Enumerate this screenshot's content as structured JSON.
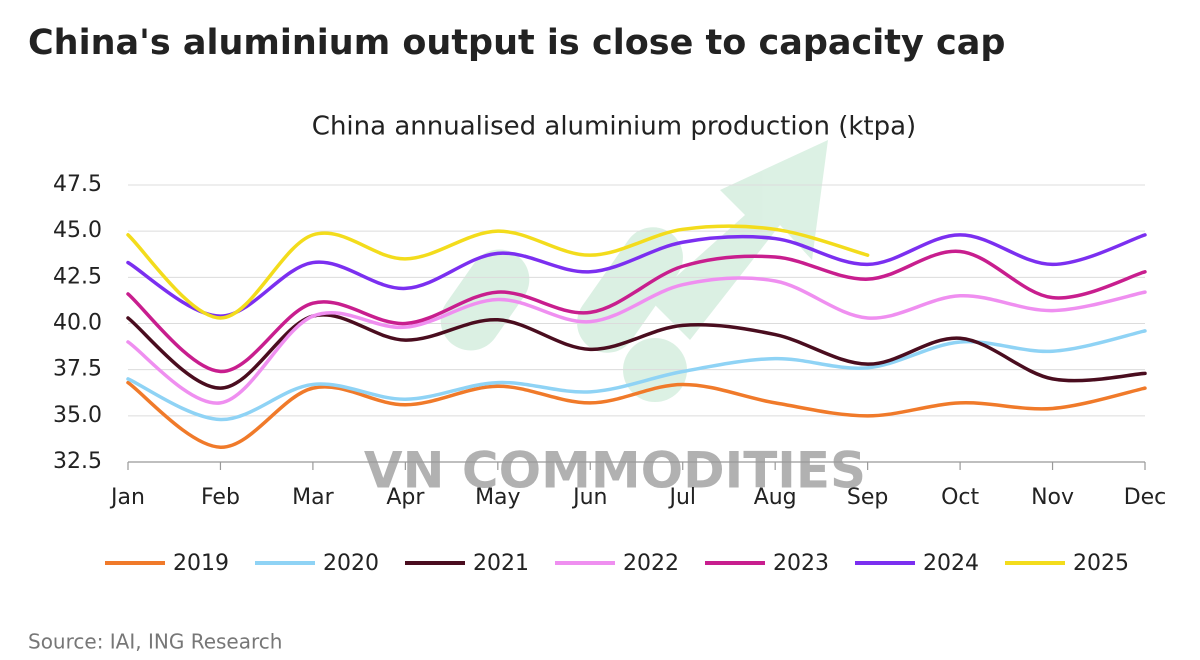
{
  "chart_data": {
    "type": "line",
    "title": "China's aluminium output is close to capacity cap",
    "subtitle": "China annualised aluminium production (ktpa)",
    "source": "Source: IAI, ING Research",
    "watermark": "VN COMMODITIES",
    "categories": [
      "Jan",
      "Feb",
      "Mar",
      "Apr",
      "May",
      "Jun",
      "Jul",
      "Aug",
      "Sep",
      "Oct",
      "Nov",
      "Dec"
    ],
    "series": [
      {
        "name": "2019",
        "color": "#f07a2a",
        "values": [
          36.8,
          33.3,
          36.5,
          35.6,
          36.6,
          35.7,
          36.7,
          35.7,
          35.0,
          35.7,
          35.4,
          36.5
        ]
      },
      {
        "name": "2020",
        "color": "#8fd3f5",
        "values": [
          37.0,
          34.8,
          36.7,
          35.9,
          36.8,
          36.3,
          37.4,
          38.1,
          37.6,
          39.0,
          38.5,
          39.6
        ]
      },
      {
        "name": "2021",
        "color": "#4a0d1f",
        "values": [
          40.3,
          36.5,
          40.4,
          39.1,
          40.2,
          38.6,
          39.9,
          39.4,
          37.8,
          39.2,
          37.0,
          37.3
        ]
      },
      {
        "name": "2022",
        "color": "#ef8ff0",
        "values": [
          39.0,
          35.7,
          40.4,
          39.8,
          41.3,
          40.1,
          42.1,
          42.3,
          40.3,
          41.5,
          40.7,
          41.7
        ]
      },
      {
        "name": "2023",
        "color": "#c81e8e",
        "values": [
          41.6,
          37.4,
          41.1,
          40.0,
          41.7,
          40.6,
          43.1,
          43.6,
          42.4,
          43.9,
          41.4,
          42.8
        ]
      },
      {
        "name": "2024",
        "color": "#7b2ff0",
        "values": [
          43.3,
          40.4,
          43.3,
          41.9,
          43.8,
          42.8,
          44.4,
          44.6,
          43.2,
          44.8,
          43.2,
          44.8
        ]
      },
      {
        "name": "2025",
        "color": "#f3dc1c",
        "values": [
          44.8,
          40.3,
          44.8,
          43.5,
          45.0,
          43.7,
          45.1,
          45.1,
          43.7,
          null,
          null,
          null
        ]
      }
    ],
    "ylim": [
      32.5,
      47.5
    ],
    "yticks": [
      32.5,
      {
        "value": 35,
        "label": "35.0"
      },
      37.5,
      {
        "value": 40,
        "label": "40.0"
      },
      42.5,
      {
        "value": 45,
        "label": "45.0"
      },
      47.5
    ],
    "grid": true
  }
}
